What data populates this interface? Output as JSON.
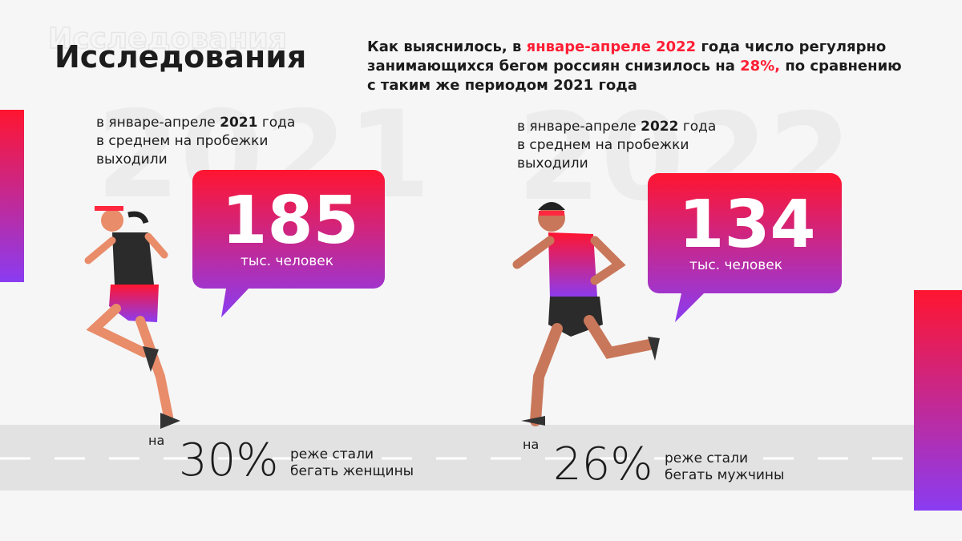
{
  "header": {
    "title": "Исследования"
  },
  "headline": {
    "lines": [
      [
        {
          "text": "Как выяснилось, в "
        },
        {
          "text": "январе-апреле 2022",
          "highlight": true
        },
        {
          "text": " года число регулярно"
        }
      ],
      [
        {
          "text": "занимающихся бегом россиян снизилось на "
        },
        {
          "text": "28%,",
          "highlight": true
        },
        {
          "text": " по сравнению"
        }
      ],
      [
        {
          "text": "с таким же периодом 2021 года"
        }
      ]
    ]
  },
  "panels": [
    {
      "year_watermark": "2021",
      "caption": {
        "before": "в январе-апреле ",
        "year": "2021",
        "after": " года",
        "lines": [
          "в среднем на пробежки",
          "выходили"
        ]
      },
      "number": "185",
      "unit": "тыс. человек",
      "decline": {
        "prefix": "на",
        "percent": "30%",
        "lines": [
          "реже стали",
          "бегать женщины"
        ]
      }
    },
    {
      "year_watermark": "2022",
      "caption": {
        "before": "в январе-апреле ",
        "year": "2022",
        "after": " года",
        "lines": [
          "в среднем на пробежки",
          "выходили"
        ]
      },
      "number": "134",
      "unit": "тыс. человек",
      "decline": {
        "prefix": "на",
        "percent": "26%",
        "lines": [
          "реже стали",
          "бегать мужчины"
        ]
      }
    }
  ]
}
